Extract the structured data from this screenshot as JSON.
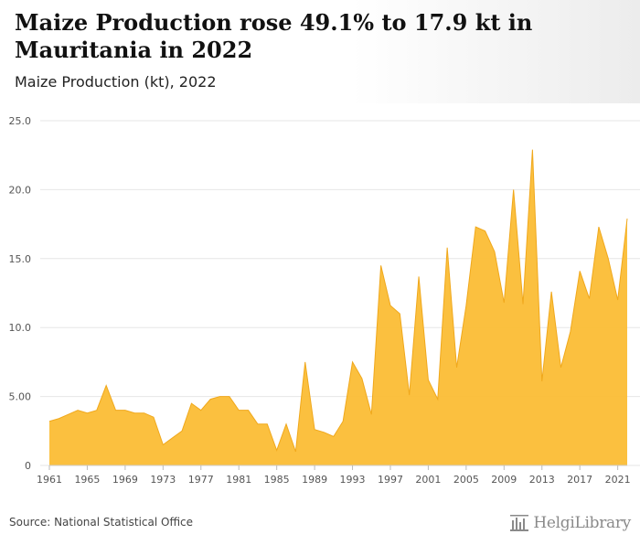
{
  "header": {
    "title": "Maize Production rose 49.1% to 17.9 kt in Mauritania in 2022",
    "subtitle": "Maize Production (kt), 2022"
  },
  "footer": {
    "source": "Source: National Statistical Office",
    "brand": "HelgiLibrary"
  },
  "colors": {
    "area_fill": "#fbbd35",
    "area_line": "#f0a81c",
    "grid": "#e6e6e6"
  },
  "chart_data": {
    "type": "area",
    "title": "Maize Production rose 49.1% to 17.9 kt in Mauritania in 2022",
    "ylabel": "Maize Production (kt)",
    "ylim": [
      0,
      25
    ],
    "yticks": [
      "0",
      "5.00",
      "10.0",
      "15.0",
      "20.0",
      "25.0"
    ],
    "xticks": [
      "1961",
      "1965",
      "1969",
      "1973",
      "1977",
      "1981",
      "1985",
      "1989",
      "1993",
      "1997",
      "2001",
      "2005",
      "2009",
      "2013",
      "2017",
      "2021"
    ],
    "grid": true,
    "x": [
      1961,
      1962,
      1963,
      1964,
      1965,
      1966,
      1967,
      1968,
      1969,
      1970,
      1971,
      1972,
      1973,
      1974,
      1975,
      1976,
      1977,
      1978,
      1979,
      1980,
      1981,
      1982,
      1983,
      1984,
      1985,
      1986,
      1987,
      1988,
      1989,
      1990,
      1991,
      1992,
      1993,
      1994,
      1995,
      1996,
      1997,
      1998,
      1999,
      2000,
      2001,
      2002,
      2003,
      2004,
      2005,
      2006,
      2007,
      2008,
      2009,
      2010,
      2011,
      2012,
      2013,
      2014,
      2015,
      2016,
      2017,
      2018,
      2019,
      2020,
      2021,
      2022
    ],
    "series": [
      {
        "values": [
          3.2,
          3.4,
          3.7,
          4.0,
          3.8,
          4.0,
          5.8,
          4.0,
          4.0,
          3.8,
          3.8,
          3.5,
          1.5,
          2.0,
          2.5,
          4.5,
          4.0,
          4.8,
          5.0,
          5.0,
          4.0,
          4.0,
          3.0,
          3.0,
          1.1,
          3.0,
          1.0,
          7.5,
          2.6,
          2.4,
          2.1,
          3.2,
          7.5,
          6.3,
          3.7,
          14.5,
          11.6,
          11.0,
          5.1,
          13.7,
          6.2,
          4.8,
          15.8,
          7.1,
          11.6,
          17.3,
          17.0,
          15.5,
          11.8,
          20.0,
          11.7,
          22.9,
          6.1,
          12.6,
          7.1,
          9.7,
          14.1,
          12.1,
          17.3,
          15.0,
          12.0,
          17.9
        ]
      }
    ]
  }
}
